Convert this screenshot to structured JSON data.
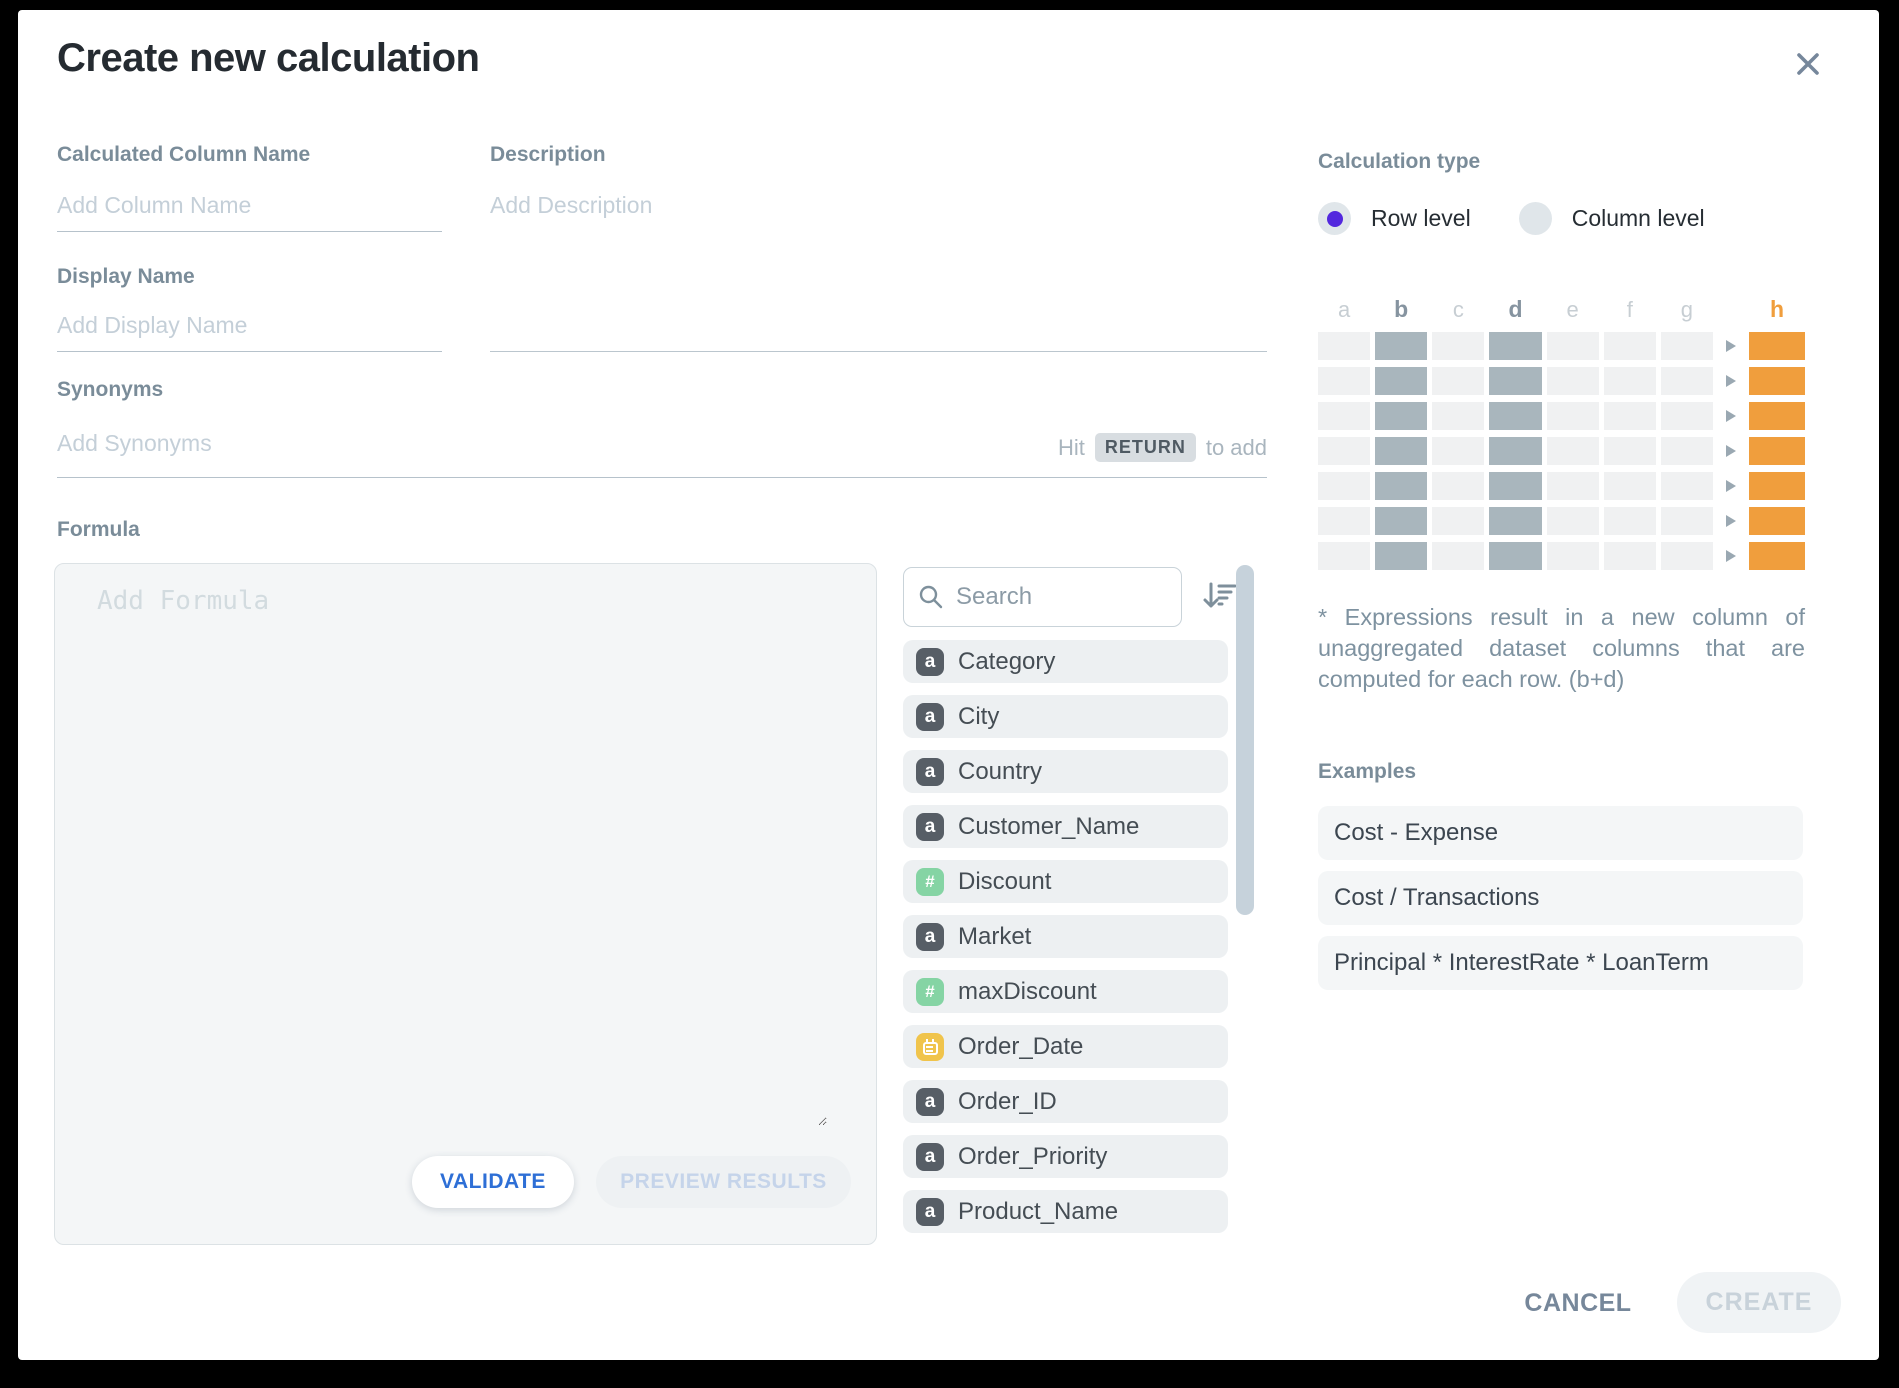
{
  "dialog": {
    "title": "Create new calculation"
  },
  "form": {
    "column_name": {
      "label": "Calculated Column Name",
      "placeholder": "Add Column Name"
    },
    "description": {
      "label": "Description",
      "placeholder": "Add Description"
    },
    "display_name": {
      "label": "Display Name",
      "placeholder": "Add Display Name"
    },
    "synonyms": {
      "label": "Synonyms",
      "placeholder": "Add Synonyms",
      "hint_prefix": "Hit",
      "hint_key": "RETURN",
      "hint_suffix": "to add"
    },
    "formula": {
      "label": "Formula",
      "placeholder": "Add Formula",
      "validate_label": "VALIDATE",
      "preview_label": "PREVIEW RESULTS"
    }
  },
  "column_picker": {
    "search_placeholder": "Search",
    "columns": [
      {
        "name": "Category",
        "type": "text"
      },
      {
        "name": "City",
        "type": "text"
      },
      {
        "name": "Country",
        "type": "text"
      },
      {
        "name": "Customer_Name",
        "type": "text"
      },
      {
        "name": "Discount",
        "type": "number"
      },
      {
        "name": "Market",
        "type": "text"
      },
      {
        "name": "maxDiscount",
        "type": "number"
      },
      {
        "name": "Order_Date",
        "type": "date"
      },
      {
        "name": "Order_ID",
        "type": "text"
      },
      {
        "name": "Order_Priority",
        "type": "text"
      },
      {
        "name": "Product_Name",
        "type": "text"
      }
    ]
  },
  "calculation_type": {
    "label": "Calculation type",
    "options": [
      {
        "label": "Row level",
        "selected": true
      },
      {
        "label": "Column level",
        "selected": false
      }
    ],
    "table_graphic": {
      "headers": [
        "a",
        "b",
        "c",
        "d",
        "e",
        "f",
        "g"
      ],
      "operand_columns": [
        "b",
        "d"
      ],
      "result_column": "h",
      "row_count": 7
    },
    "note": "* Expressions result in a new column of unaggregated dataset columns that are computed for each row. (b+d)",
    "examples_label": "Examples",
    "examples": [
      "Cost - Expense",
      "Cost / Transactions",
      "Principal * InterestRate * LoanTerm"
    ]
  },
  "footer": {
    "cancel_label": "CANCEL",
    "create_label": "CREATE"
  },
  "colors": {
    "accent_orange": "#F09E3D",
    "operand_gray": "#A9B6BD",
    "radio_selected_purple": "#5328DE",
    "validate_blue": "#2E6FD6",
    "label_gray_blue": "#7A8C99"
  }
}
